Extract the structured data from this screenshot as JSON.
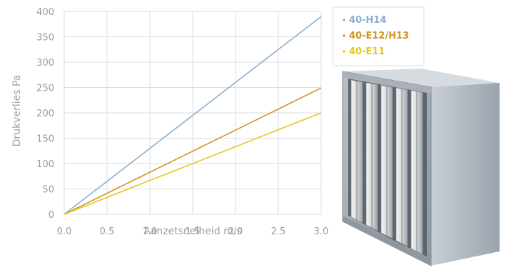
{
  "chart_data": {
    "type": "line",
    "xlabel": "Aanzetsnelheid m/s",
    "ylabel": "Drukverlies Pa",
    "xlim": [
      0,
      3.0
    ],
    "ylim": [
      0,
      400
    ],
    "x_ticks": [
      "0.0",
      "0.5",
      "1.0",
      "1.5",
      "2.0",
      "2.5",
      "3.0"
    ],
    "y_ticks": [
      "0",
      "50",
      "100",
      "150",
      "200",
      "250",
      "300",
      "350",
      "400"
    ],
    "grid": true,
    "legend_position": "top-right",
    "series": [
      {
        "name": "40-H14",
        "color": "#8aaed0",
        "x": [
          0,
          3.0
        ],
        "y": [
          0,
          390
        ]
      },
      {
        "name": "40-E12/H13",
        "color": "#d4951c",
        "x": [
          0,
          3.0
        ],
        "y": [
          0,
          249
        ]
      },
      {
        "name": "40-E11",
        "color": "#e3c81e",
        "x": [
          0,
          3.0
        ],
        "y": [
          0,
          200
        ]
      }
    ]
  }
}
